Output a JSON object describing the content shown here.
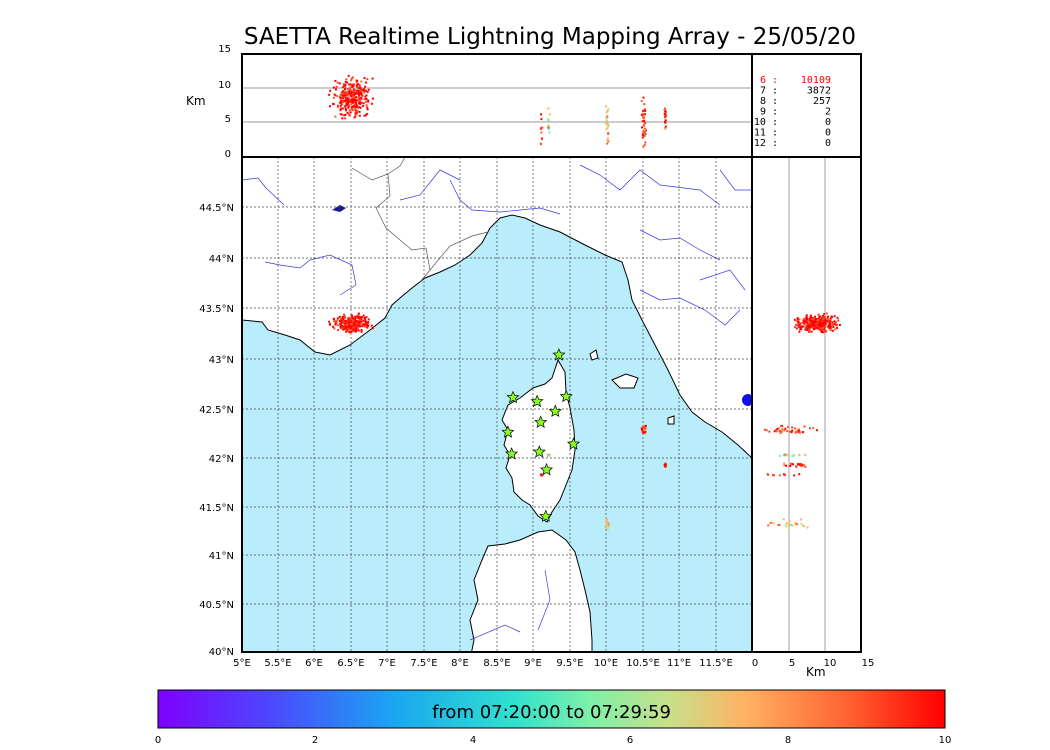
{
  "title": "SAETTA Realtime Lightning Mapping Array - 25/05/20",
  "map": {
    "lon_ticks": [
      "5°E",
      "5.5°E",
      "6°E",
      "6.5°E",
      "7°E",
      "7.5°E",
      "8°E",
      "8.5°E",
      "9°E",
      "9.5°E",
      "10°E",
      "10.5°E",
      "11°E",
      "11.5°E"
    ],
    "lat_ticks": [
      "40°N",
      "40.5°N",
      "41°N",
      "41.5°N",
      "42°N",
      "42.5°N",
      "43°N",
      "43.5°N",
      "44°N",
      "44.5°N"
    ],
    "lon_range": [
      5,
      12.5
    ],
    "lat_range": [
      40,
      44.9
    ],
    "sea_color": "#b9edfb",
    "land_color": "#ffffff",
    "river_color": "#3a36e0",
    "station_marker": "star",
    "station_color": "#88ff22"
  },
  "alt_panel": {
    "y_label": "Km",
    "y_ticks": [
      "0",
      "5",
      "10",
      "15"
    ]
  },
  "side_panel": {
    "x_label": "Km",
    "x_ticks": [
      "0",
      "5",
      "10",
      "15"
    ]
  },
  "station_counts": [
    {
      "n": "6",
      "v": "10109",
      "color": "#ff0000"
    },
    {
      "n": "7",
      "v": "3872",
      "color": "#000000"
    },
    {
      "n": "8",
      "v": "257",
      "color": "#000000"
    },
    {
      "n": "9",
      "v": "2",
      "color": "#000000"
    },
    {
      "n": "10",
      "v": "0",
      "color": "#000000"
    },
    {
      "n": "11",
      "v": "0",
      "color": "#000000"
    },
    {
      "n": "12",
      "v": "0",
      "color": "#000000"
    }
  ],
  "colorbar": {
    "label": "from 07:20:00 to 07:29:59",
    "ticks": [
      "0",
      "2",
      "4",
      "6",
      "8",
      "10"
    ],
    "scale": "rainbow"
  },
  "chart_data": {
    "type": "scatter",
    "title": "SAETTA Realtime Lightning Mapping Array - 25/05/20",
    "xlim": [
      5,
      12
    ],
    "ylim": [
      40,
      45
    ],
    "altitude_range_km": [
      0,
      15
    ],
    "color_range_minutes": [
      0,
      10
    ],
    "clusters": [
      {
        "lon": 6.5,
        "lat": 43.33,
        "alt_km": 9,
        "minute": 9
      },
      {
        "lon": 10.5,
        "lat": 42.25,
        "alt_km": 5,
        "minute": 8
      },
      {
        "lon": 9.2,
        "lat": 42.0,
        "alt_km": 5,
        "minute": 5
      },
      {
        "lon": 10.0,
        "lat": 41.3,
        "alt_km": 5,
        "minute": 6
      },
      {
        "lon": 9.1,
        "lat": 41.8,
        "alt_km": 4,
        "minute": 8
      },
      {
        "lon": 10.8,
        "lat": 41.9,
        "alt_km": 6,
        "minute": 8
      }
    ],
    "stations": [
      {
        "lon": 9.35,
        "lat": 43.0
      },
      {
        "lon": 8.72,
        "lat": 42.57
      },
      {
        "lon": 9.05,
        "lat": 42.53
      },
      {
        "lon": 9.45,
        "lat": 42.58
      },
      {
        "lon": 9.3,
        "lat": 42.43
      },
      {
        "lon": 9.1,
        "lat": 42.32
      },
      {
        "lon": 8.65,
        "lat": 42.22
      },
      {
        "lon": 9.55,
        "lat": 42.1
      },
      {
        "lon": 9.08,
        "lat": 42.02
      },
      {
        "lon": 8.7,
        "lat": 42.0
      },
      {
        "lon": 9.18,
        "lat": 41.84
      },
      {
        "lon": 9.17,
        "lat": 41.37
      }
    ]
  }
}
